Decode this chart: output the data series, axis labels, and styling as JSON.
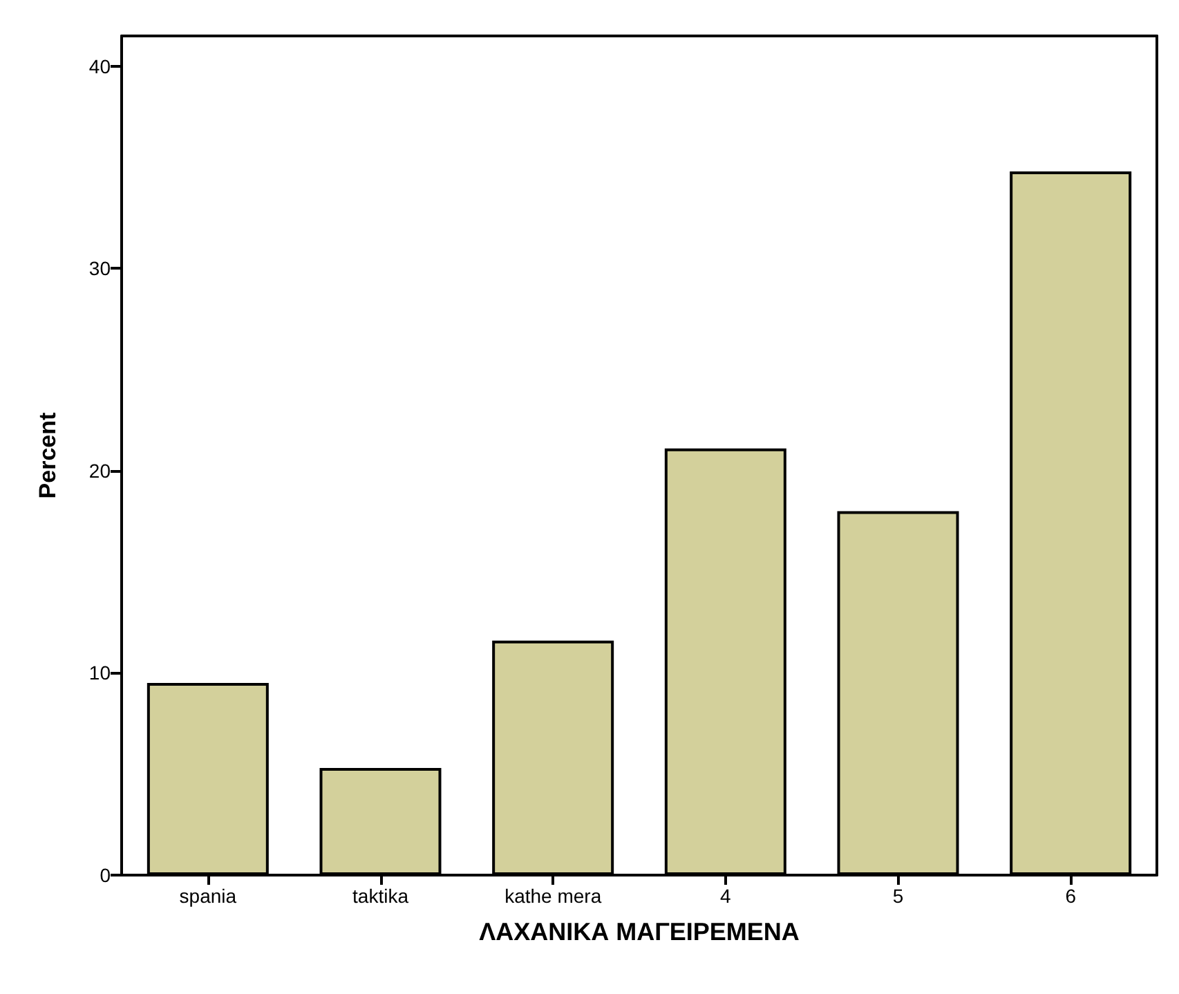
{
  "chart_data": {
    "type": "bar",
    "xlabel": "ΛΑΧΑΝΙΚΑ ΜΑΓΕΙΡΕΜΕΝΑ",
    "ylabel": "Percent",
    "categories": [
      "spania",
      "taktika",
      "kathe mera",
      "4",
      "5",
      "6"
    ],
    "values": [
      9.5,
      5.3,
      11.6,
      21.1,
      18.0,
      34.8
    ],
    "color": "#d3d09b",
    "ylim": [
      0,
      41.5
    ],
    "yticks": [
      0,
      10,
      20,
      30,
      40
    ],
    "grid": false
  }
}
